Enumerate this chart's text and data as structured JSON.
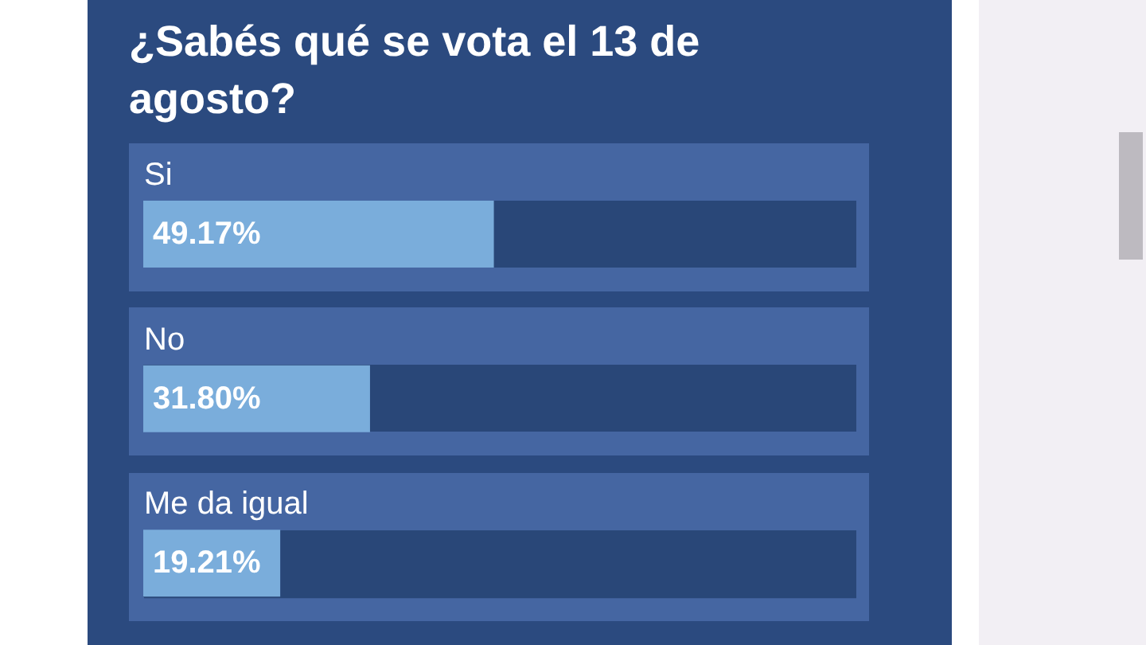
{
  "chart_data": {
    "type": "bar",
    "orientation": "horizontal",
    "title": "¿Sabés qué se vota el 13 de agosto?",
    "categories": [
      "Si",
      "No",
      "Me da igual"
    ],
    "values": [
      49.17,
      31.8,
      19.21
    ],
    "value_labels": [
      "49.17%",
      "31.80%",
      "19.21%"
    ],
    "color": "#7aaddb",
    "xlim": [
      0,
      100
    ],
    "tick_labels": "y"
  }
}
